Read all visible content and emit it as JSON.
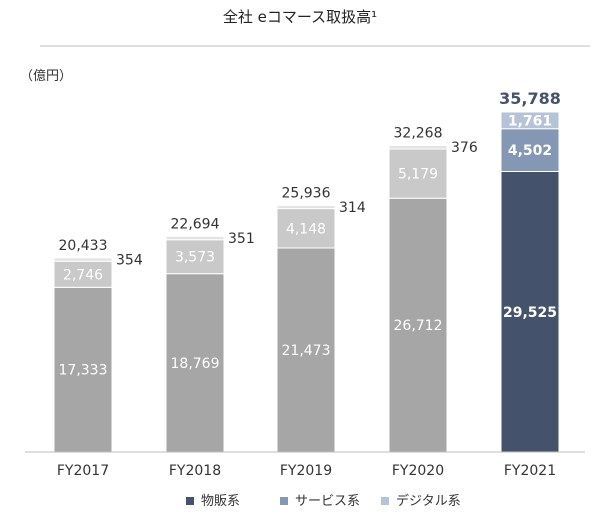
{
  "chart_data": {
    "type": "bar",
    "stacked": true,
    "title": "全社 eコマース取扱高¹",
    "unit_label": "（億円）",
    "categories": [
      "FY2017",
      "FY2018",
      "FY2019",
      "FY2020",
      "FY2021"
    ],
    "series": [
      {
        "name": "物販系",
        "values": [
          17333,
          18769,
          21473,
          26712,
          29525
        ]
      },
      {
        "name": "サービス系",
        "values": [
          2746,
          3573,
          4148,
          5179,
          4502
        ]
      },
      {
        "name": "デジタル系",
        "values": [
          354,
          351,
          314,
          376,
          1761
        ]
      }
    ],
    "totals": [
      20433,
      22694,
      25936,
      32268,
      35788
    ],
    "value_labels": {
      "totals": [
        "20,433",
        "22,694",
        "25,936",
        "32,268",
        "35,788"
      ],
      "series": [
        [
          "17,333",
          "18,769",
          "21,473",
          "26,712",
          "29,525"
        ],
        [
          "2,746",
          "3,573",
          "4,148",
          "5,179",
          "4,502"
        ],
        [
          "354",
          "351",
          "314",
          "376",
          "1,761"
        ]
      ]
    },
    "highlight_index": 4,
    "colors": {
      "normal": [
        "#a6a6a6",
        "#c9c9c9",
        "#e3e3e3"
      ],
      "highlight": [
        "#44526b",
        "#8497b4",
        "#b6c2d6"
      ],
      "axis": "#bfbfbf",
      "title_rule": "#bfbfbf"
    },
    "ylim": [
      0,
      36000
    ],
    "grid": false,
    "legend_position": "bottom"
  }
}
